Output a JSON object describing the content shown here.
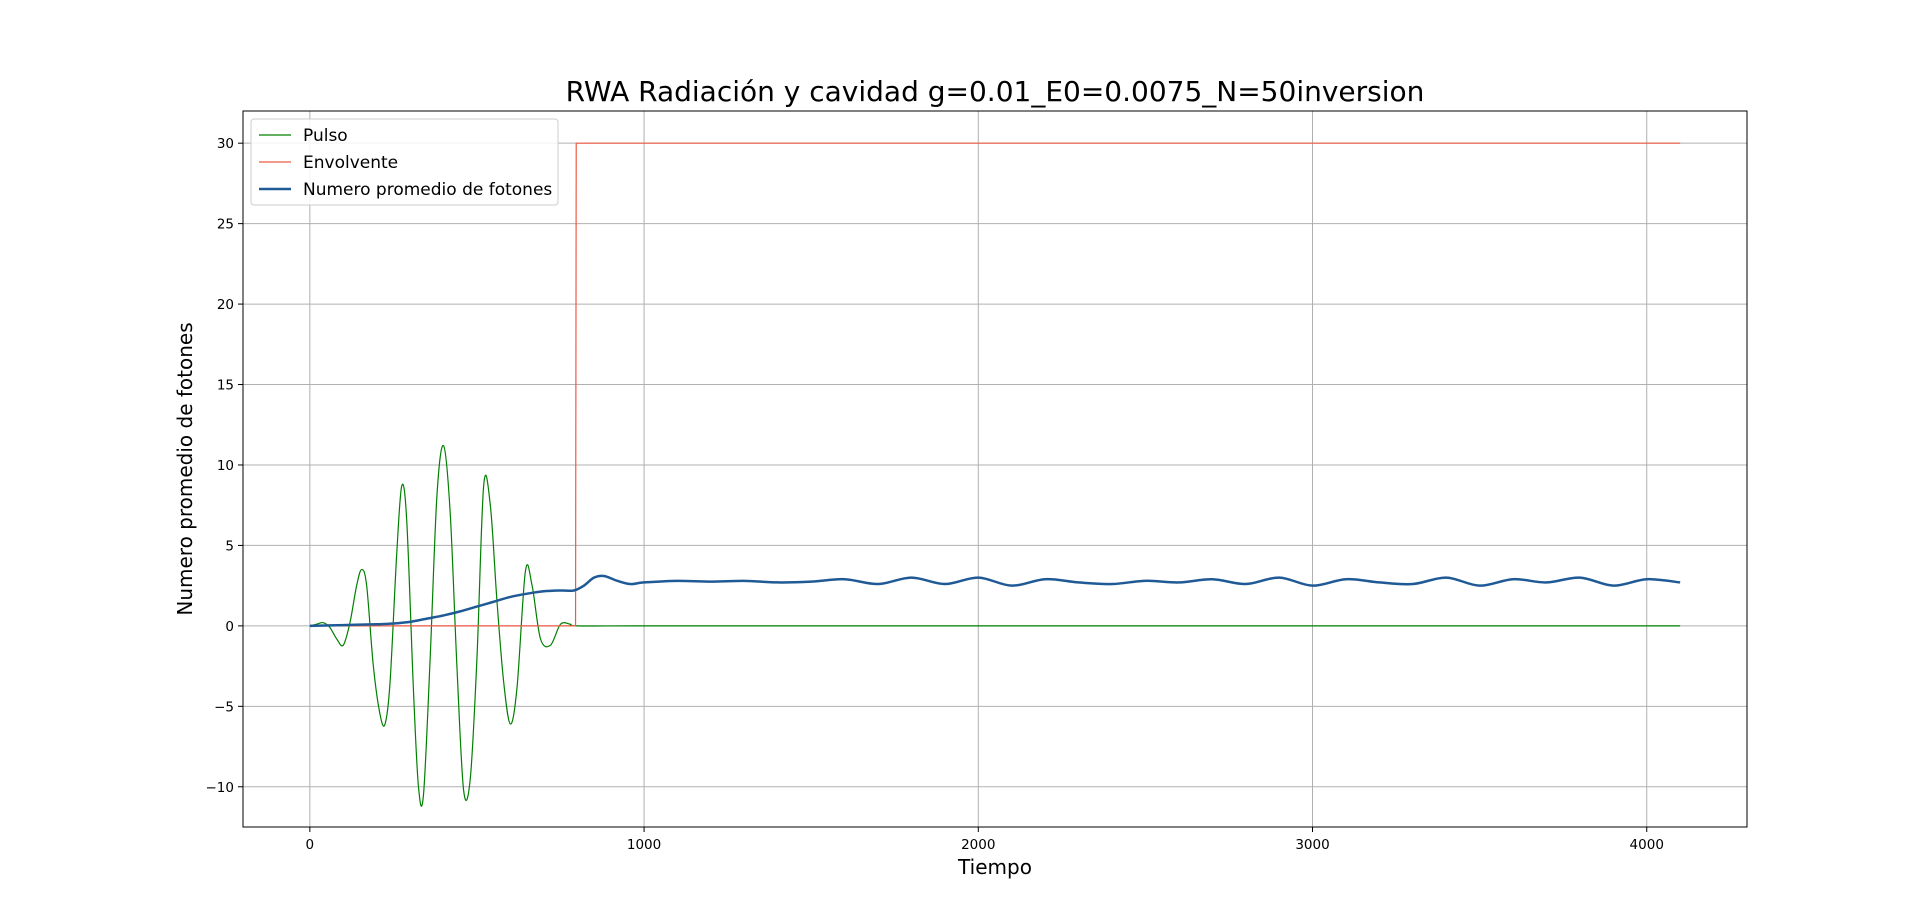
{
  "chart_data": {
    "type": "line",
    "title": "RWA Radiación y cavidad g=0.01_E0=0.0075_N=50inversion",
    "xlabel": "Tiempo",
    "ylabel": "Numero promedio de fotones",
    "xlim": [
      -200,
      4300
    ],
    "ylim": [
      -12.5,
      32
    ],
    "xticks": [
      0,
      1000,
      2000,
      3000,
      4000
    ],
    "xtick_labels": [
      "0",
      "1000",
      "2000",
      "3000",
      "4000"
    ],
    "yticks": [
      -10,
      -5,
      0,
      5,
      10,
      15,
      20,
      25,
      30
    ],
    "ytick_labels": [
      "−10",
      "−5",
      "0",
      "5",
      "10",
      "15",
      "20",
      "25",
      "30"
    ],
    "grid": true,
    "legend_position": "top-left",
    "series": [
      {
        "name": "Pulso",
        "color": "#008000",
        "line_width": 1.2,
        "x": [
          0,
          20,
          40,
          60,
          80,
          100,
          120,
          140,
          155,
          170,
          190,
          210,
          225,
          240,
          260,
          275,
          290,
          310,
          325,
          340,
          360,
          380,
          400,
          420,
          440,
          460,
          480,
          500,
          520,
          540,
          560,
          580,
          600,
          620,
          645,
          665,
          690,
          720,
          750,
          780,
          800,
          1000,
          1500,
          2000,
          2500,
          3000,
          3500,
          4000,
          4100
        ],
        "y": [
          0,
          0.1,
          0.2,
          -0.1,
          -0.8,
          -1.2,
          0.2,
          2.5,
          3.5,
          2.5,
          -2.5,
          -5.5,
          -6.1,
          -3.5,
          4.5,
          8.7,
          6.5,
          -4.0,
          -10.0,
          -10.5,
          -2.0,
          8.0,
          11.2,
          7.0,
          -2.5,
          -10.2,
          -9.5,
          -2.0,
          8.7,
          7.5,
          1.5,
          -3.5,
          -6.1,
          -3.8,
          3.4,
          2.5,
          -0.8,
          -1.2,
          0.1,
          0.1,
          0,
          0,
          0,
          0,
          0,
          0,
          0,
          0,
          0
        ]
      },
      {
        "name": "Envolvente",
        "color": "#ee5a45",
        "line_width": 1.2,
        "x": [
          0,
          795,
          797,
          4100
        ],
        "y": [
          0,
          0,
          30,
          30
        ]
      },
      {
        "name": "Numero promedio de fotones",
        "color": "#1f5a96",
        "line_width": 2.5,
        "x": [
          0,
          100,
          200,
          250,
          300,
          350,
          400,
          450,
          500,
          550,
          600,
          650,
          700,
          750,
          790,
          820,
          850,
          880,
          920,
          960,
          1000,
          1100,
          1200,
          1300,
          1400,
          1500,
          1600,
          1700,
          1800,
          1900,
          2000,
          2100,
          2200,
          2300,
          2400,
          2500,
          2600,
          2700,
          2800,
          2900,
          3000,
          3100,
          3200,
          3300,
          3400,
          3500,
          3600,
          3700,
          3800,
          3900,
          4000,
          4100
        ],
        "y": [
          0,
          0.05,
          0.1,
          0.15,
          0.25,
          0.45,
          0.65,
          0.9,
          1.2,
          1.5,
          1.8,
          2.0,
          2.15,
          2.2,
          2.2,
          2.5,
          3.0,
          3.1,
          2.8,
          2.6,
          2.7,
          2.8,
          2.75,
          2.8,
          2.7,
          2.75,
          2.9,
          2.6,
          3.0,
          2.6,
          3.0,
          2.5,
          2.9,
          2.7,
          2.6,
          2.8,
          2.7,
          2.9,
          2.6,
          3.0,
          2.5,
          2.9,
          2.7,
          2.6,
          3.0,
          2.5,
          2.9,
          2.7,
          3.0,
          2.5,
          2.9,
          2.7
        ]
      }
    ]
  }
}
